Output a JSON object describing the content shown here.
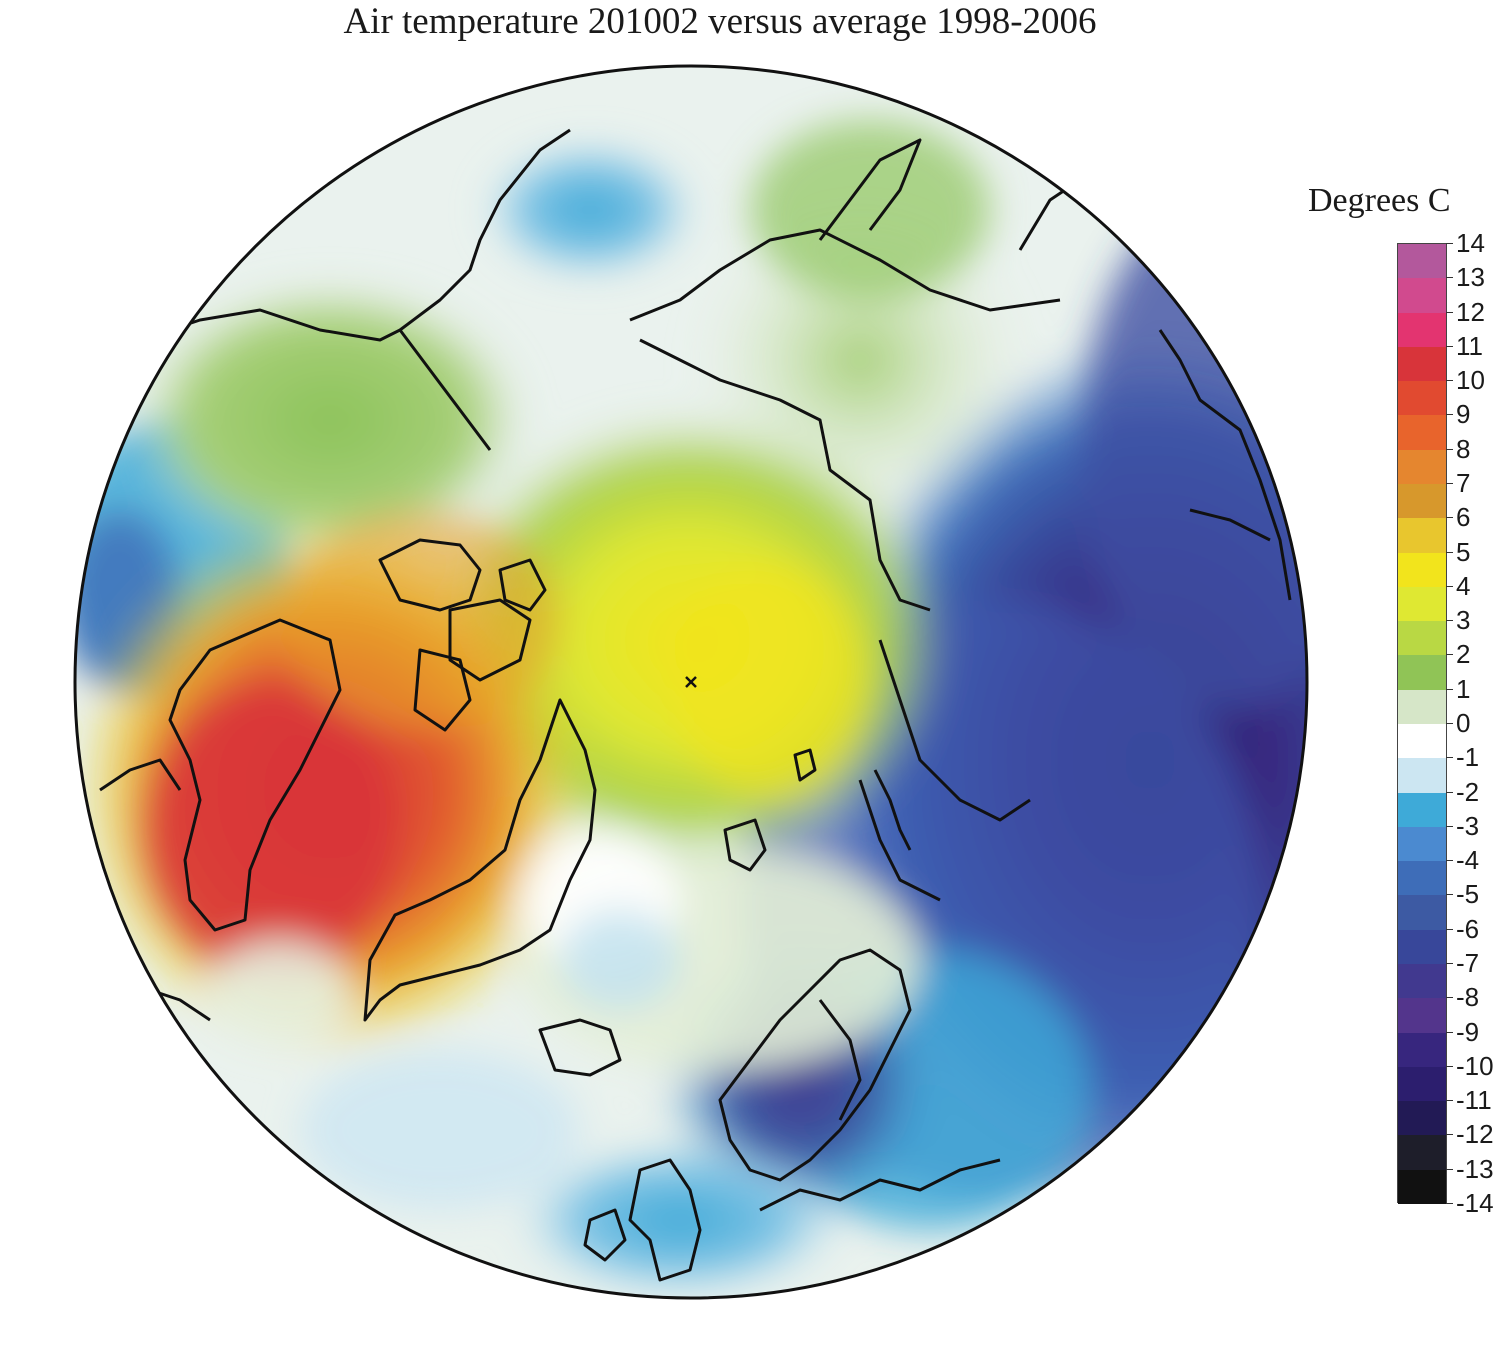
{
  "title": "Air temperature 201002 versus average 1998-2006",
  "legend": {
    "title": "Degrees C",
    "ticks": [
      "14",
      "13",
      "12",
      "11",
      "10",
      "9",
      "8",
      "7",
      "6",
      "5",
      "4",
      "3",
      "2",
      "1",
      "0",
      "-1",
      "-2",
      "-3",
      "-4",
      "-5",
      "-6",
      "-7",
      "-8",
      "-9",
      "-10",
      "-11",
      "-12",
      "-13",
      "-14"
    ],
    "colors": [
      "#b3589c",
      "#d14a8e",
      "#e33470",
      "#d8343a",
      "#e14a30",
      "#e8642c",
      "#e5862f",
      "#d7982c",
      "#e8c62e",
      "#f2e41c",
      "#dfe832",
      "#b9d844",
      "#90c456",
      "#d6e6c8",
      "#ffffff",
      "#cce6f2",
      "#3eaad8",
      "#4b8ad0",
      "#3e6db8",
      "#3d5aa3",
      "#38479a",
      "#41398f",
      "#53358c",
      "#37267e",
      "#2c1e6e",
      "#221a55",
      "#1e1e2a",
      "#111111"
    ]
  },
  "map": {
    "projection": "north polar stereographic",
    "center_marker": "pole-marker"
  }
}
